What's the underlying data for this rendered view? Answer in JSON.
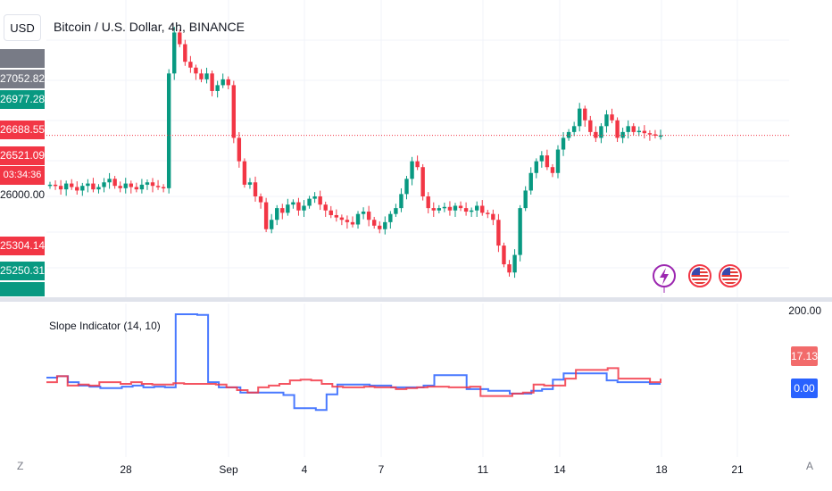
{
  "header": {
    "currency_button": "USD",
    "symbol_title": "Bitcoin / U.S. Dollar, 4h, BINANCE"
  },
  "price_labels": [
    {
      "text": "27052.82",
      "bg": "#787b86"
    },
    {
      "text": "26977.28",
      "bg": "#089981"
    },
    {
      "text": "26688.55",
      "bg": "#f23645"
    },
    {
      "text": "26521.09",
      "bg": "#f23645"
    },
    {
      "text": "03:34:36",
      "bg": "#f23645"
    },
    {
      "text": "26000.00",
      "bg": ""
    },
    {
      "text": "25304.14",
      "bg": "#f23645"
    },
    {
      "text": "25250.31",
      "bg": "#089981"
    }
  ],
  "indicator": {
    "title": "Slope Indicator (14, 10)",
    "scale_top": "200.00",
    "red_value": "17.13",
    "blue_value": "0.00"
  },
  "x_axis": {
    "labels": [
      "28",
      "Sep",
      "4",
      "7",
      "11",
      "14",
      "18",
      "21"
    ]
  },
  "corner_icons": {
    "left": "Z",
    "right": "A"
  },
  "event_icons": [
    "lightning-icon",
    "us-flag-icon",
    "us-flag-icon"
  ],
  "colors": {
    "up": "#089981",
    "down": "#f23645",
    "blue_line": "#2962ff",
    "red_line": "#f23645",
    "grid": "#f0f3fa"
  },
  "chart_data": [
    {
      "type": "candlestick",
      "title": "Bitcoin / U.S. Dollar, 4h, BINANCE",
      "current_price": 26521.09,
      "price_path": [
        26100,
        26090,
        26060,
        26110,
        26080,
        26050,
        26090,
        26110,
        26060,
        26080,
        26120,
        26150,
        26090,
        26070,
        26110,
        26080,
        26060,
        26100,
        26120,
        26090,
        26080,
        26070,
        27050,
        27400,
        27300,
        27150,
        27100,
        27050,
        27000,
        27050,
        26900,
        26950,
        27000,
        26950,
        26500,
        26300,
        26100,
        26120,
        26000,
        25950,
        25720,
        25800,
        25900,
        25860,
        25930,
        25950,
        25880,
        25920,
        25980,
        26000,
        25930,
        25880,
        25840,
        25820,
        25800,
        25780,
        25760,
        25850,
        25870,
        25800,
        25750,
        25720,
        25780,
        25850,
        25900,
        26020,
        26150,
        26300,
        26250,
        26000,
        25900,
        25880,
        25900,
        25910,
        25880,
        25920,
        25900,
        25870,
        25880,
        25920,
        25860,
        25850,
        25800,
        25580,
        25420,
        25350,
        25500,
        25900,
        26050,
        26200,
        26300,
        26350,
        26250,
        26200,
        26400,
        26500,
        26550,
        26600,
        26750,
        26650,
        26550,
        26500,
        26600,
        26700,
        26650,
        26500,
        26550,
        26600,
        26550,
        26560,
        26540,
        26530,
        26520,
        26521
      ]
    },
    {
      "type": "line",
      "title": "Slope Indicator (14, 10)",
      "series": [
        {
          "color": "blue",
          "values": [
            18,
            22,
            5,
            -5,
            -8,
            -12,
            -12,
            -8,
            -5,
            -10,
            -8,
            -10,
            200,
            200,
            198,
            5,
            -10,
            -10,
            -25,
            -25,
            -25,
            -25,
            -32,
            -70,
            -70,
            -75,
            -30,
            -2,
            -2,
            -2,
            -5,
            -5,
            -10,
            -10,
            -10,
            -5,
            25,
            25,
            25,
            -15,
            -15,
            -20,
            -20,
            -28,
            -28,
            -20,
            -15,
            12,
            30,
            30,
            30,
            30,
            10,
            5,
            5,
            5,
            0,
            0
          ]
        },
        {
          "color": "red",
          "values": [
            5,
            22,
            -5,
            -2,
            -5,
            5,
            5,
            0,
            5,
            0,
            -2,
            -2,
            2,
            0,
            0,
            0,
            -2,
            -10,
            -18,
            -25,
            -10,
            -5,
            0,
            10,
            12,
            10,
            0,
            -8,
            -10,
            -10,
            -8,
            -10,
            -10,
            -15,
            -12,
            -10,
            -8,
            -8,
            -10,
            -10,
            -8,
            -35,
            -35,
            -35,
            -28,
            -25,
            -2,
            -5,
            -5,
            15,
            40,
            40,
            40,
            45,
            15,
            15,
            15,
            5,
            15
          ]
        }
      ]
    }
  ]
}
